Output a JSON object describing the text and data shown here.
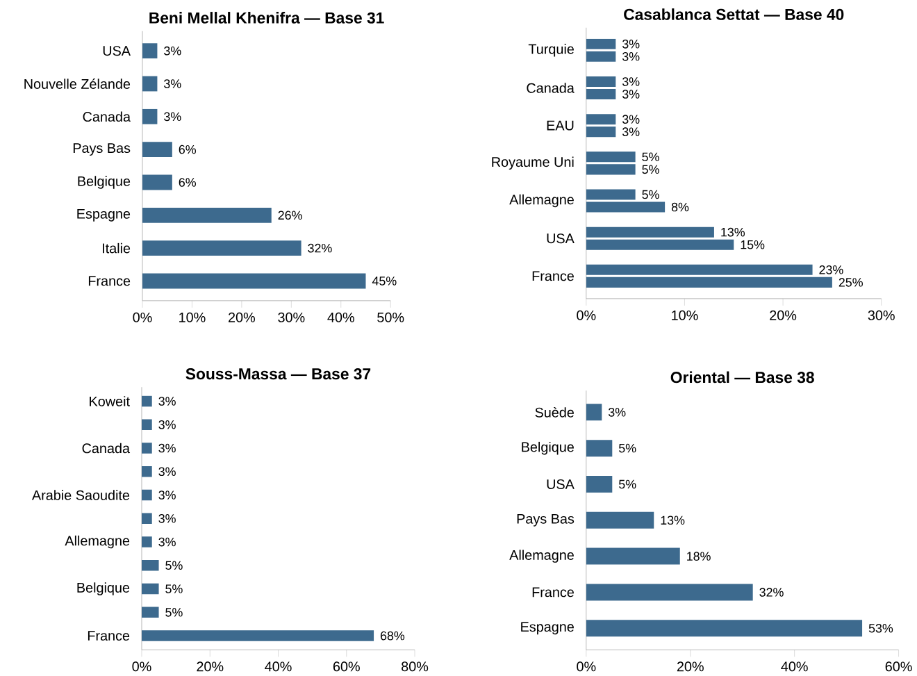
{
  "chart_data": [
    {
      "type": "bar",
      "orientation": "horizontal",
      "title": "Beni Mellal Khenifra — Base 31",
      "categories": [
        "USA",
        "Nouvelle Zélande",
        "Canada",
        "Pays Bas",
        "Belgique",
        "Espagne",
        "Italie",
        "France"
      ],
      "series": [
        {
          "color": "#3d6a8e",
          "values": [
            3,
            3,
            3,
            6,
            6,
            26,
            32,
            45
          ],
          "value_labels": [
            "3%",
            "3%",
            "3%",
            "6%",
            "6%",
            "26%",
            "32%",
            "45%"
          ]
        }
      ],
      "xlim": [
        0,
        50
      ],
      "xticks": [
        {
          "value": 0,
          "label": "0%"
        },
        {
          "value": 10,
          "label": "10%"
        },
        {
          "value": 20,
          "label": "20%"
        },
        {
          "value": 30,
          "label": "30%"
        },
        {
          "value": 40,
          "label": "40%"
        },
        {
          "value": 50,
          "label": "50%"
        }
      ]
    },
    {
      "type": "bar",
      "orientation": "horizontal",
      "title": "Casablanca Settat — Base 40",
      "categories": [
        "Turquie",
        "Canada",
        "EAU",
        "Royaume Uni",
        "Allemagne",
        "USA",
        "France"
      ],
      "series": [
        {
          "color": "#3d6a8e",
          "values": [
            3,
            3,
            3,
            5,
            5,
            13,
            23
          ],
          "value_labels": [
            "3%",
            "3%",
            "3%",
            "5%",
            "5%",
            "13%",
            "23%"
          ]
        },
        {
          "color": "#3d6a8e",
          "values": [
            3,
            3,
            3,
            5,
            8,
            15,
            25
          ],
          "value_labels": [
            "3%",
            "3%",
            "3%",
            "5%",
            "8%",
            "15%",
            "25%"
          ]
        }
      ],
      "xlim": [
        0,
        30
      ],
      "xticks": [
        {
          "value": 0,
          "label": "0%"
        },
        {
          "value": 10,
          "label": "10%"
        },
        {
          "value": 20,
          "label": "20%"
        },
        {
          "value": 30,
          "label": "30%"
        }
      ]
    },
    {
      "type": "bar",
      "orientation": "horizontal",
      "title": "Souss-Massa — Base 37",
      "categories": [
        "Koweit",
        null,
        "Canada",
        null,
        "Arabie Saoudite",
        null,
        "Allemagne",
        null,
        "Belgique",
        null,
        "France"
      ],
      "series": [
        {
          "color": "#3d6a8e",
          "values": [
            3,
            3,
            3,
            3,
            3,
            3,
            3,
            5,
            5,
            5,
            68
          ],
          "value_labels": [
            "3%",
            "3%",
            "3%",
            "3%",
            "3%",
            "3%",
            "3%",
            "5%",
            "5%",
            "5%",
            "68%"
          ]
        }
      ],
      "xlim": [
        0,
        80
      ],
      "xticks": [
        {
          "value": 0,
          "label": "0%"
        },
        {
          "value": 20,
          "label": "20%"
        },
        {
          "value": 40,
          "label": "40%"
        },
        {
          "value": 60,
          "label": "60%"
        },
        {
          "value": 80,
          "label": "80%"
        }
      ]
    },
    {
      "type": "bar",
      "orientation": "horizontal",
      "title": "Oriental — Base 38",
      "categories": [
        "Suède",
        "Belgique",
        "USA",
        "Pays Bas",
        "Allemagne",
        "France",
        "Espagne"
      ],
      "series": [
        {
          "color": "#3d6a8e",
          "values": [
            3,
            5,
            5,
            13,
            18,
            32,
            53
          ],
          "value_labels": [
            "3%",
            "5%",
            "5%",
            "13%",
            "18%",
            "32%",
            "53%"
          ]
        }
      ],
      "xlim": [
        0,
        60
      ],
      "xticks": [
        {
          "value": 0,
          "label": "0%"
        },
        {
          "value": 20,
          "label": "20%"
        },
        {
          "value": 40,
          "label": "40%"
        },
        {
          "value": 60,
          "label": "60%"
        }
      ]
    }
  ]
}
